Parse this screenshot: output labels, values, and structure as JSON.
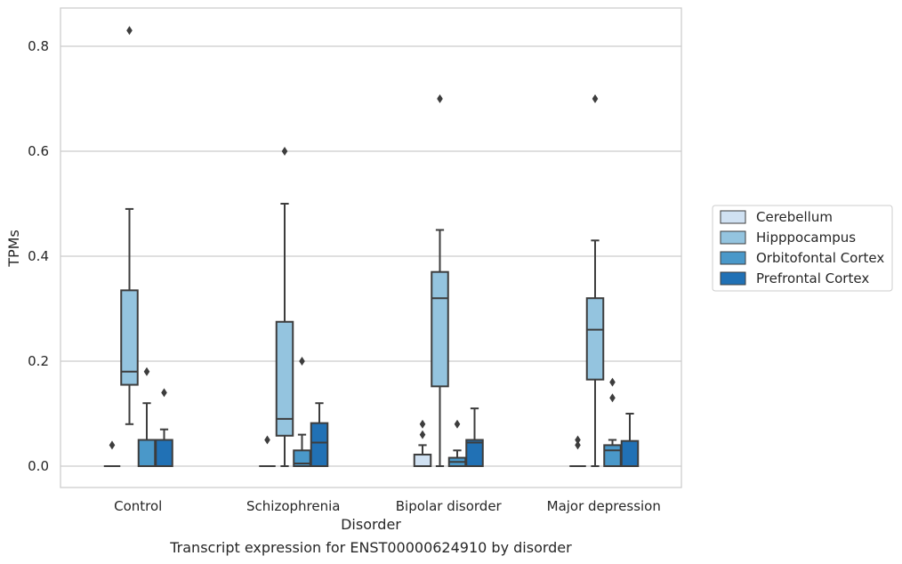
{
  "chart_data": {
    "type": "box",
    "title": "",
    "caption": "Transcript expression for ENST00000624910 by disorder",
    "xlabel": "Disorder",
    "ylabel": "TPMs",
    "ylim": [
      -0.04,
      0.875
    ],
    "yticks": [
      "0.0",
      "0.2",
      "0.4",
      "0.6",
      "0.8"
    ],
    "ytick_values": [
      0.0,
      0.2,
      0.4,
      0.6,
      0.8
    ],
    "grid": "horizontal",
    "legend_position": "right",
    "categories": [
      "Control",
      "Schizophrenia",
      "Bipolar disorder",
      "Major depression"
    ],
    "series": [
      {
        "name": "Cerebellum",
        "color": "#d0e1f2",
        "boxes": [
          {
            "q1": 0.0,
            "median": 0.0,
            "q3": 0.0,
            "whisker_low": 0.0,
            "whisker_high": 0.0,
            "outliers": [
              0.04
            ]
          },
          {
            "q1": 0.0,
            "median": 0.0,
            "q3": 0.0,
            "whisker_low": 0.0,
            "whisker_high": 0.0,
            "outliers": [
              0.05
            ]
          },
          {
            "q1": 0.0,
            "median": 0.0,
            "q3": 0.022,
            "whisker_low": 0.0,
            "whisker_high": 0.04,
            "outliers": [
              0.06,
              0.08
            ]
          },
          {
            "q1": 0.0,
            "median": 0.0,
            "q3": 0.0,
            "whisker_low": 0.0,
            "whisker_high": 0.0,
            "outliers": [
              0.04,
              0.05
            ]
          }
        ]
      },
      {
        "name": "Hipppocampus",
        "color": "#94c4df",
        "boxes": [
          {
            "q1": 0.155,
            "median": 0.18,
            "q3": 0.335,
            "whisker_low": 0.08,
            "whisker_high": 0.49,
            "outliers": [
              0.83
            ]
          },
          {
            "q1": 0.058,
            "median": 0.09,
            "q3": 0.275,
            "whisker_low": 0.0,
            "whisker_high": 0.5,
            "outliers": [
              0.6
            ]
          },
          {
            "q1": 0.152,
            "median": 0.32,
            "q3": 0.37,
            "whisker_low": 0.0,
            "whisker_high": 0.45,
            "outliers": [
              0.7
            ]
          },
          {
            "q1": 0.165,
            "median": 0.26,
            "q3": 0.32,
            "whisker_low": 0.0,
            "whisker_high": 0.43,
            "outliers": [
              0.7
            ]
          }
        ]
      },
      {
        "name": "Orbitofontal Cortex",
        "color": "#4a98c9",
        "boxes": [
          {
            "q1": 0.0,
            "median": 0.0,
            "q3": 0.05,
            "whisker_low": 0.0,
            "whisker_high": 0.12,
            "outliers": [
              0.18
            ]
          },
          {
            "q1": 0.0,
            "median": 0.005,
            "q3": 0.03,
            "whisker_low": 0.0,
            "whisker_high": 0.06,
            "outliers": [
              0.2
            ]
          },
          {
            "q1": 0.0,
            "median": 0.008,
            "q3": 0.016,
            "whisker_low": 0.0,
            "whisker_high": 0.03,
            "outliers": [
              0.08
            ]
          },
          {
            "q1": 0.0,
            "median": 0.03,
            "q3": 0.04,
            "whisker_low": 0.0,
            "whisker_high": 0.05,
            "outliers": [
              0.13,
              0.16
            ]
          }
        ]
      },
      {
        "name": "Prefrontal Cortex",
        "color": "#2171b5",
        "boxes": [
          {
            "q1": 0.0,
            "median": 0.0,
            "q3": 0.05,
            "whisker_low": 0.0,
            "whisker_high": 0.07,
            "outliers": [
              0.14
            ]
          },
          {
            "q1": 0.0,
            "median": 0.045,
            "q3": 0.082,
            "whisker_low": 0.0,
            "whisker_high": 0.12,
            "outliers": []
          },
          {
            "q1": 0.0,
            "median": 0.045,
            "q3": 0.05,
            "whisker_low": 0.0,
            "whisker_high": 0.11,
            "outliers": []
          },
          {
            "q1": 0.0,
            "median": 0.0,
            "q3": 0.048,
            "whisker_low": 0.0,
            "whisker_high": 0.1,
            "outliers": []
          }
        ]
      }
    ]
  }
}
